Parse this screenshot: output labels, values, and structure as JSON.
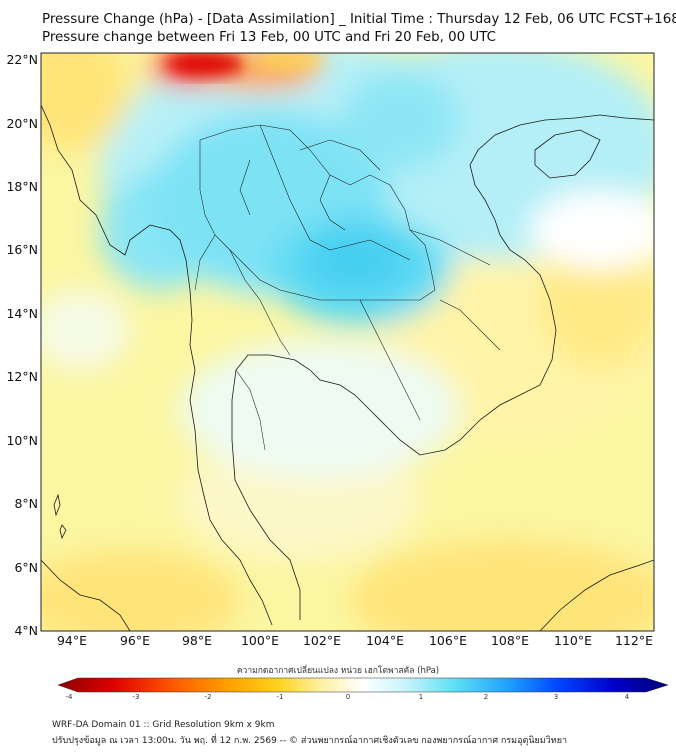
{
  "title_line1": "Pressure Change (hPa) - [Data Assimilation] _ Initial Time : Thursday 12 Feb, 06 UTC FCST+168",
  "title_line2": "Pressure change between Fri 13 Feb, 00 UTC and Fri 20 Feb, 00 UTC",
  "lat_labels": [
    "22°N",
    "20°N",
    "18°N",
    "16°N",
    "14°N",
    "12°N",
    "10°N",
    "8°N",
    "6°N",
    "4°N"
  ],
  "lon_labels": [
    "94°E",
    "96°E",
    "98°E",
    "100°E",
    "102°E",
    "104°E",
    "106°E",
    "108°E",
    "110°E",
    "112°E"
  ],
  "colorbar": {
    "label": "ความกดอากาศเปลี่ยนแปลง หน่วย เฮกโตพาสคัล (hPa)",
    "ticks": [
      "-4",
      "-3",
      "-2",
      "-1",
      "0",
      "1",
      "2",
      "3",
      "4"
    ],
    "min": -4,
    "max": 4
  },
  "footer_line1": "WRF-DA Domain 01 :: Grid Resolution 9km x 9km",
  "footer_line2": "ปรับปรุงข้อมูล ณ เวลา 13:00น. วัน พฤ. ที่ 12 ก.พ. 2569 -- © ส่วนพยากรณ์อากาศเชิงตัวเลข กองพยากรณ์อากาศ กรมอุตุนิยมวิทยา",
  "colors": {
    "strong_fall": "#c80000",
    "fall": "#ffd21e",
    "neutral": "#ffffff",
    "rise": "#5ee0f4",
    "strong_rise": "#00008c"
  }
}
